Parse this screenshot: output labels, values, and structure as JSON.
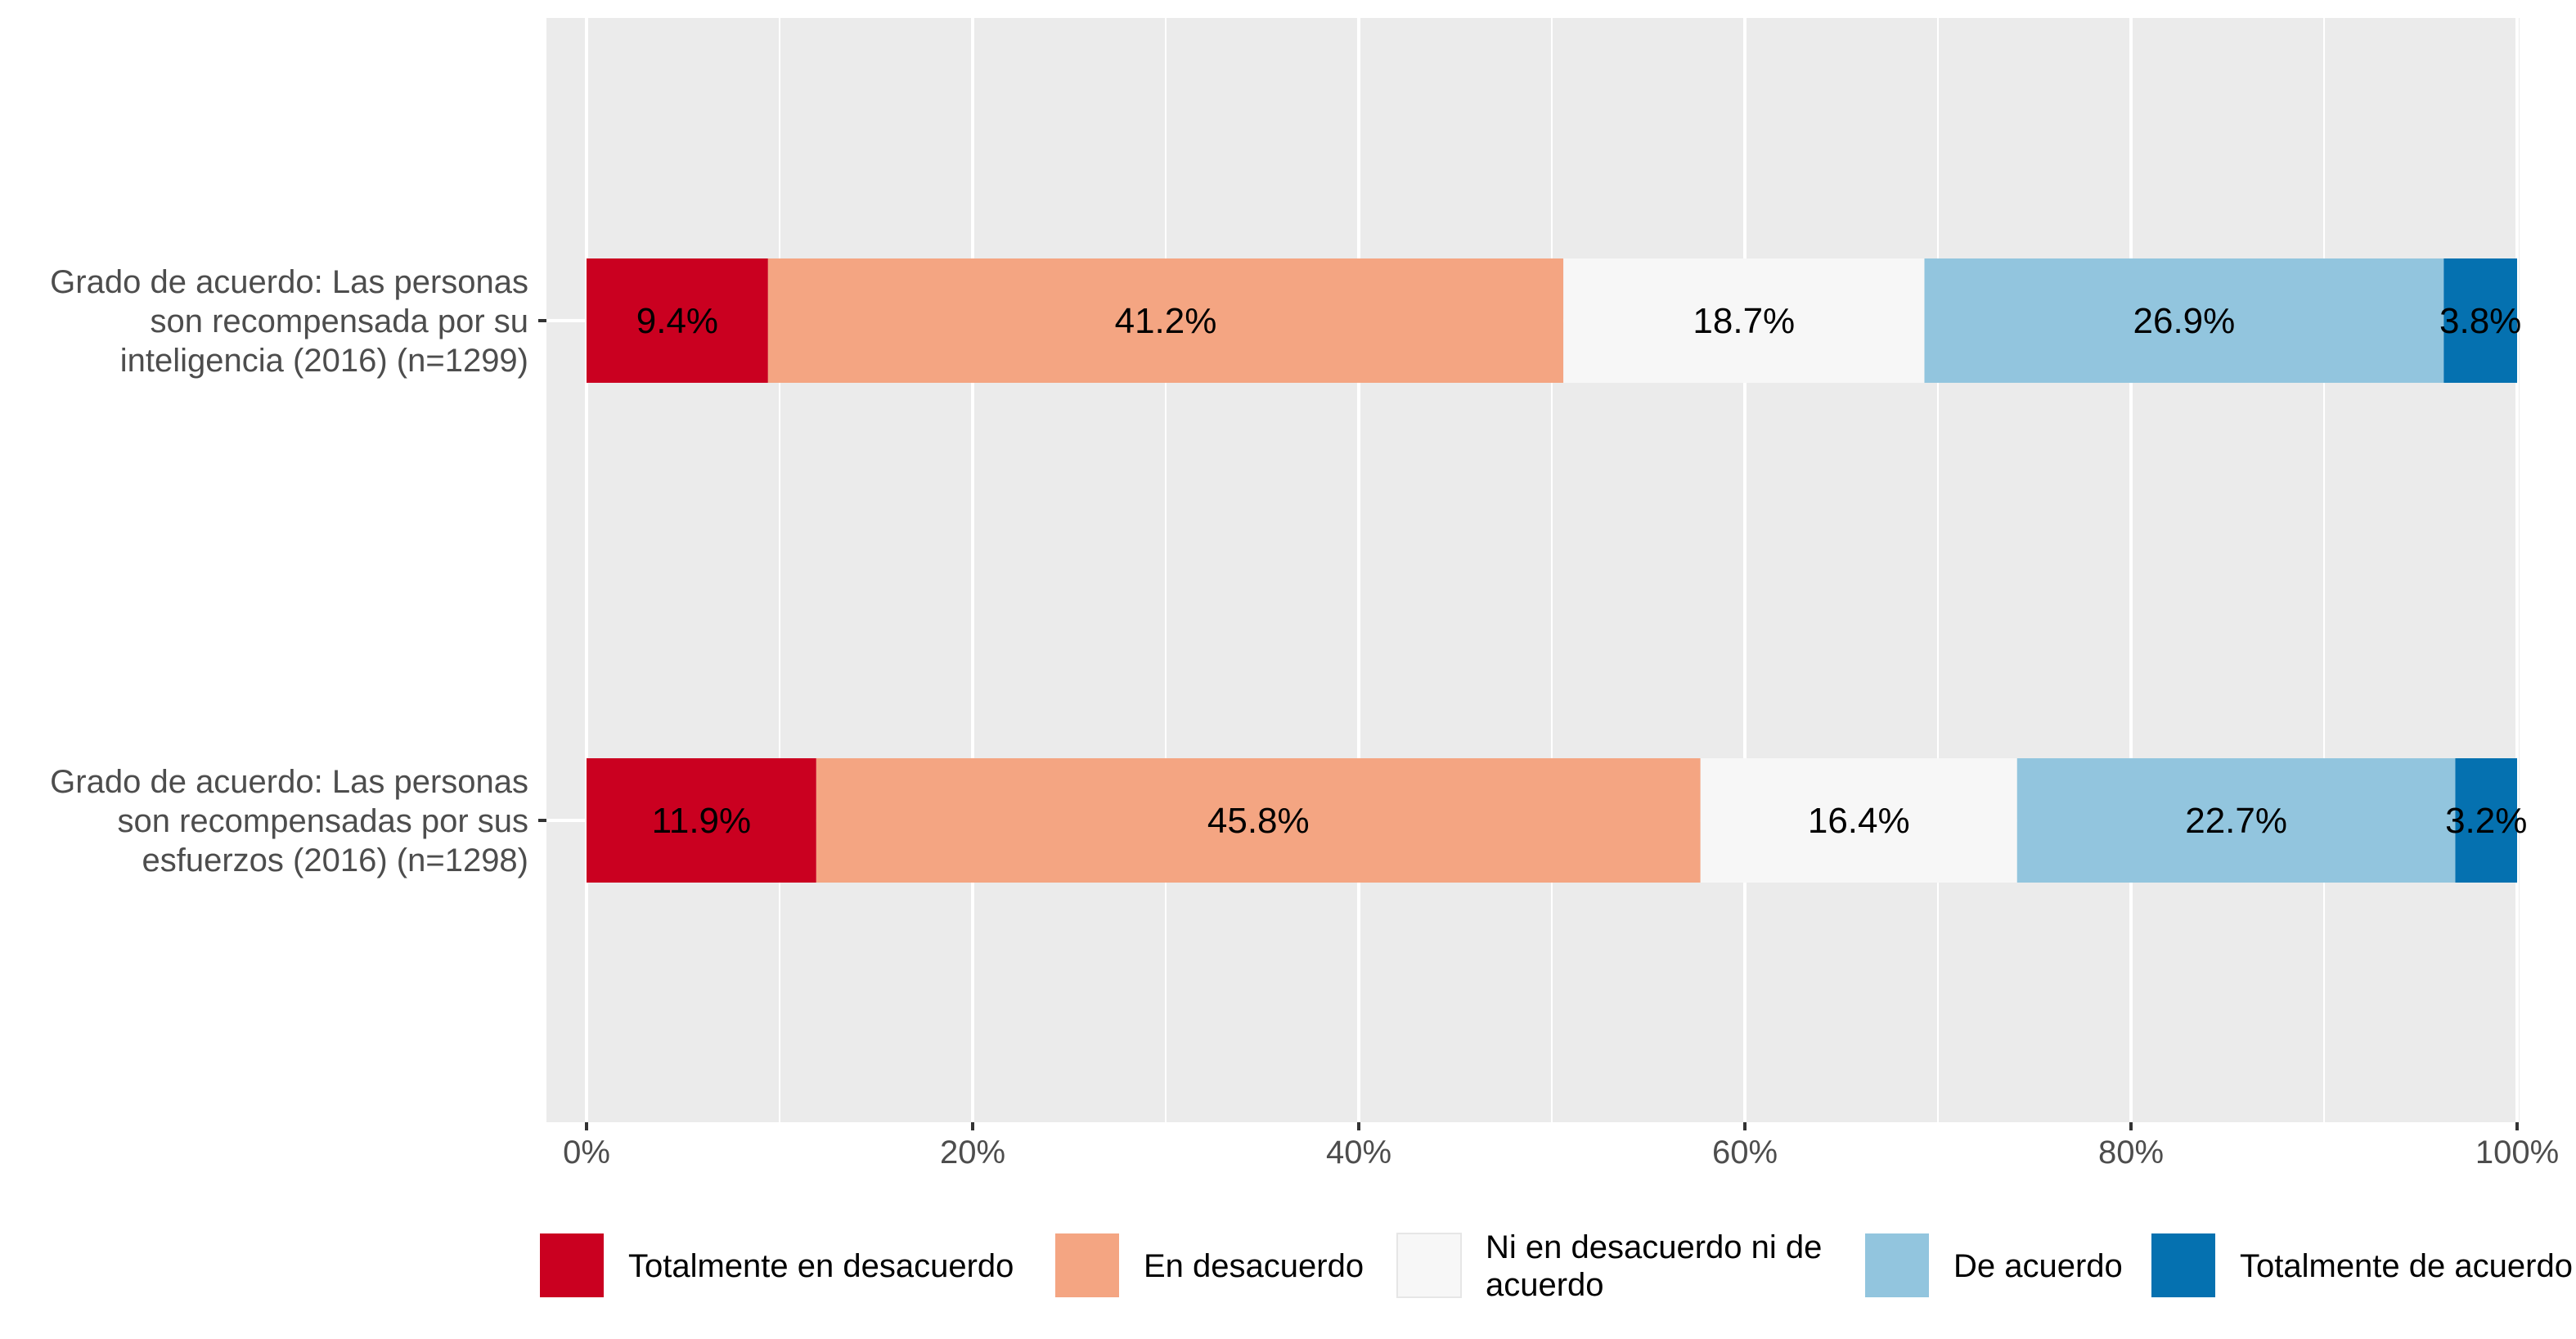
{
  "chart_data": {
    "type": "bar",
    "orientation": "horizontal",
    "stacked": true,
    "title": "",
    "xlabel": "",
    "ylabel": "",
    "xlim": [
      0,
      100
    ],
    "x_ticks": [
      0,
      20,
      40,
      60,
      80,
      100
    ],
    "x_tick_labels": [
      "0%",
      "20%",
      "40%",
      "60%",
      "80%",
      "100%"
    ],
    "grid": true,
    "legend_position": "bottom",
    "categories": [
      [
        "Grado de acuerdo: Las personas",
        "son recompensada por su",
        "inteligencia (2016) (n=1299)"
      ],
      [
        "Grado de acuerdo: Las personas",
        "son recompensadas por sus",
        "esfuerzos (2016) (n=1298)"
      ]
    ],
    "series": [
      {
        "name": "Totalmente en desacuerdo",
        "legend_lines": [
          "Totalmente en desacuerdo"
        ],
        "color": "#ca0020",
        "values": [
          9.4,
          11.9
        ],
        "labels": [
          "9.4%",
          "11.9%"
        ]
      },
      {
        "name": "En desacuerdo",
        "legend_lines": [
          "En desacuerdo"
        ],
        "color": "#f4a582",
        "values": [
          41.2,
          45.8
        ],
        "labels": [
          "41.2%",
          "45.8%"
        ]
      },
      {
        "name": "Ni en desacuerdo ni de acuerdo",
        "legend_lines": [
          "Ni en desacuerdo ni de",
          "acuerdo"
        ],
        "color": "#f7f7f7",
        "values": [
          18.7,
          16.4
        ],
        "labels": [
          "18.7%",
          "16.4%"
        ]
      },
      {
        "name": "De acuerdo",
        "legend_lines": [
          "De acuerdo"
        ],
        "color": "#92c5de",
        "values": [
          26.9,
          22.7
        ],
        "labels": [
          "26.9%",
          "22.7%"
        ]
      },
      {
        "name": "Totalmente de acuerdo",
        "legend_lines": [
          "Totalmente de acuerdo"
        ],
        "color": "#0571b0",
        "values": [
          3.8,
          3.2
        ],
        "labels": [
          "3.8%",
          "3.2%"
        ]
      }
    ],
    "colors": {
      "panel_background": "#ebebeb",
      "grid_line": "#ffffff",
      "axis_text": "#4d4d4d"
    }
  }
}
